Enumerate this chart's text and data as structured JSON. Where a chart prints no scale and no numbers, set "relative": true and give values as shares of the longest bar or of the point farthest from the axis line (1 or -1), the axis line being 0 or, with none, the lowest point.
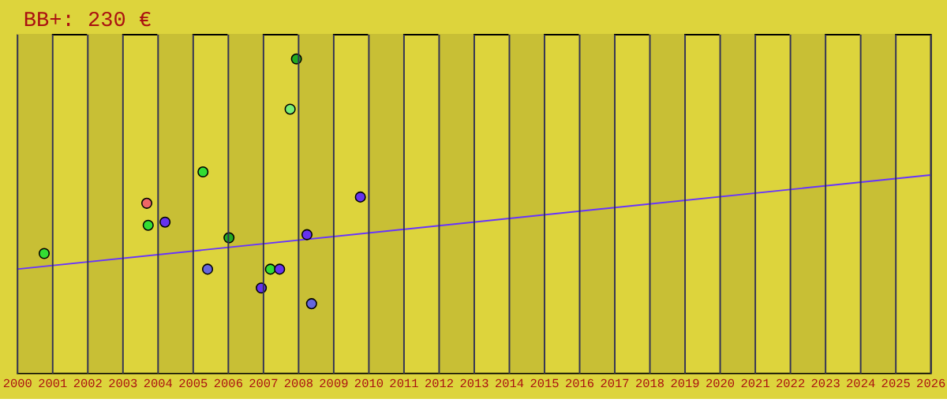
{
  "chart_data": {
    "type": "scatter",
    "title": "BB+: 230 €",
    "relative": true,
    "xlim": [
      2000,
      2026
    ],
    "xticks": [
      2000,
      2001,
      2002,
      2003,
      2004,
      2005,
      2006,
      2007,
      2008,
      2009,
      2010,
      2011,
      2012,
      2013,
      2014,
      2015,
      2016,
      2017,
      2018,
      2019,
      2020,
      2021,
      2022,
      2023,
      2024,
      2025,
      2026
    ],
    "grid": "x",
    "marker": "circle",
    "series": [
      {
        "x": [
          2000.78,
          2003.7,
          2003.74,
          2004.22,
          2005.3,
          2005.43,
          2006.04,
          2006.96,
          2007.22,
          2007.48,
          2007.78,
          2007.96,
          2008.26,
          2008.39,
          2009.78
        ],
        "values": [
          0.38,
          0.54,
          0.47,
          0.48,
          0.64,
          0.33,
          0.43,
          0.27,
          0.33,
          0.33,
          0.84,
          1,
          0.44,
          0.22,
          0.56
        ],
        "colors": [
          "#33dd33",
          "#ee6666",
          "#33dd33",
          "#6633ee",
          "#33dd33",
          "#6666dd",
          "#22aa22",
          "#6633ee",
          "#33dd33",
          "#6633ee",
          "#77ee77",
          "#22aa22",
          "#6633ee",
          "#6666dd",
          "#6633ee"
        ]
      },
      {
        "type": "line",
        "x": [
          2000,
          2026
        ],
        "values": [
          0.33,
          0.63
        ],
        "color": "#6633ff",
        "marker": "none",
        "line_style": "solid"
      }
    ],
    "bands": [
      {
        "axis": "x",
        "from": 2000,
        "to": 2001,
        "color": "#c8bf35"
      },
      {
        "axis": "x",
        "from": 2002,
        "to": 2003,
        "color": "#c8bf35"
      },
      {
        "axis": "x",
        "from": 2004,
        "to": 2005,
        "color": "#c8bf35"
      },
      {
        "axis": "x",
        "from": 2006,
        "to": 2007,
        "color": "#c8bf35"
      },
      {
        "axis": "x",
        "from": 2008,
        "to": 2009,
        "color": "#c8bf35"
      },
      {
        "axis": "x",
        "from": 2010,
        "to": 2011,
        "color": "#c8bf35"
      },
      {
        "axis": "x",
        "from": 2012,
        "to": 2013,
        "color": "#c8bf35"
      },
      {
        "axis": "x",
        "from": 2014,
        "to": 2015,
        "color": "#c8bf35"
      },
      {
        "axis": "x",
        "from": 2016,
        "to": 2017,
        "color": "#c8bf35"
      },
      {
        "axis": "x",
        "from": 2018,
        "to": 2019,
        "color": "#c8bf35"
      },
      {
        "axis": "x",
        "from": 2020,
        "to": 2021,
        "color": "#c8bf35"
      },
      {
        "axis": "x",
        "from": 2022,
        "to": 2023,
        "color": "#c8bf35"
      },
      {
        "axis": "x",
        "from": 2024,
        "to": 2025,
        "color": "#c8bf35"
      }
    ]
  }
}
